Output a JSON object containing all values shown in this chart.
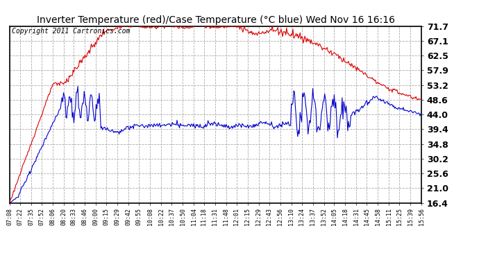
{
  "title": "Inverter Temperature (red)/Case Temperature (°C blue) Wed Nov 16 16:16",
  "copyright": "Copyright 2011 Cartronics.com",
  "y_ticks": [
    16.4,
    21.0,
    25.6,
    30.2,
    34.8,
    39.4,
    44.0,
    48.6,
    53.2,
    57.9,
    62.5,
    67.1,
    71.7
  ],
  "x_labels": [
    "07:08",
    "07:22",
    "07:35",
    "07:52",
    "08:06",
    "08:20",
    "08:33",
    "08:46",
    "09:00",
    "09:15",
    "09:29",
    "09:42",
    "09:55",
    "10:08",
    "10:22",
    "10:37",
    "10:50",
    "11:04",
    "11:18",
    "11:31",
    "11:48",
    "12:01",
    "12:15",
    "12:29",
    "12:43",
    "12:56",
    "13:10",
    "13:24",
    "13:37",
    "13:52",
    "14:05",
    "14:18",
    "14:31",
    "14:45",
    "14:58",
    "15:11",
    "15:25",
    "15:39",
    "15:56"
  ],
  "bg_color": "#ffffff",
  "plot_bg_color": "#ffffff",
  "grid_color": "#aaaaaa",
  "red_color": "#dd0000",
  "blue_color": "#0000cc",
  "title_fontsize": 10,
  "copyright_fontsize": 7,
  "y_tick_fontsize": 9,
  "x_tick_fontsize": 6
}
